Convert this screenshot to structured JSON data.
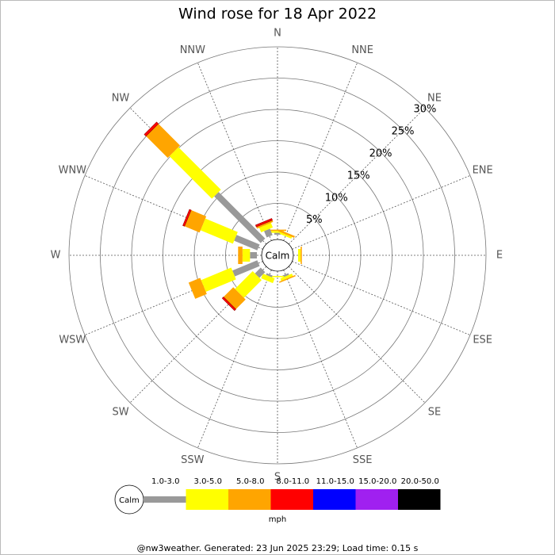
{
  "chart_data": {
    "type": "windrose",
    "title": "Wind rose for 18 Apr 2022",
    "directions": [
      "N",
      "NNE",
      "NE",
      "ENE",
      "E",
      "ESE",
      "SE",
      "SSE",
      "S",
      "SSW",
      "SW",
      "WSW",
      "W",
      "WNW",
      "NW",
      "NNW"
    ],
    "calm_label": "Calm",
    "unit": "mph",
    "footer": "@nw3weather. Generated: 23 Jun 2025 23:29; Load time: 0.15 s",
    "ylim": [
      0,
      30
    ],
    "yticks": [
      {
        "value": 5,
        "label": "5%"
      },
      {
        "value": 10,
        "label": "10%"
      },
      {
        "value": 15,
        "label": "15%"
      },
      {
        "value": 20,
        "label": "20%"
      },
      {
        "value": 25,
        "label": "25%"
      },
      {
        "value": 30,
        "label": "30%"
      }
    ],
    "series": [
      {
        "name": "1.0-3.0",
        "color": "#999999",
        "values": [
          0.3,
          0,
          0,
          0,
          0,
          0,
          0,
          0.3,
          0,
          0.3,
          1.3,
          4.3,
          1.1,
          4,
          10.5,
          1.1
        ]
      },
      {
        "name": "3.0-5.0",
        "color": "#ffff00",
        "values": [
          0.3,
          0.3,
          0,
          0,
          0.4,
          0,
          0,
          0.4,
          0.2,
          0.8,
          4.0,
          5.2,
          1.2,
          5.6,
          9.6,
          0.8
        ]
      },
      {
        "name": "5.0-8.0",
        "color": "#ffa500",
        "values": [
          0.2,
          0.3,
          0,
          0,
          0.2,
          0,
          0,
          0.2,
          0,
          0,
          2.2,
          2.0,
          0.7,
          2.6,
          4.9,
          0.3
        ]
      },
      {
        "name": "8.0-11.0",
        "color": "#ff0000",
        "values": [
          0,
          0,
          0,
          0,
          0,
          0,
          0,
          0,
          0,
          0,
          0.3,
          0,
          0,
          0.3,
          0.4,
          0.3
        ]
      },
      {
        "name": "11.0-15.0",
        "color": "#0000ff",
        "values": [
          0,
          0,
          0,
          0,
          0,
          0,
          0,
          0,
          0,
          0,
          0,
          0,
          0,
          0,
          0,
          0
        ]
      },
      {
        "name": "15.0-20.0",
        "color": "#a020f0",
        "values": [
          0,
          0,
          0,
          0,
          0,
          0,
          0,
          0,
          0,
          0,
          0,
          0,
          0,
          0,
          0,
          0
        ]
      },
      {
        "name": "20.0-50.0",
        "color": "#000000",
        "values": [
          0,
          0,
          0,
          0,
          0,
          0,
          0,
          0,
          0,
          0,
          0,
          0,
          0,
          0,
          0,
          0
        ]
      }
    ]
  }
}
